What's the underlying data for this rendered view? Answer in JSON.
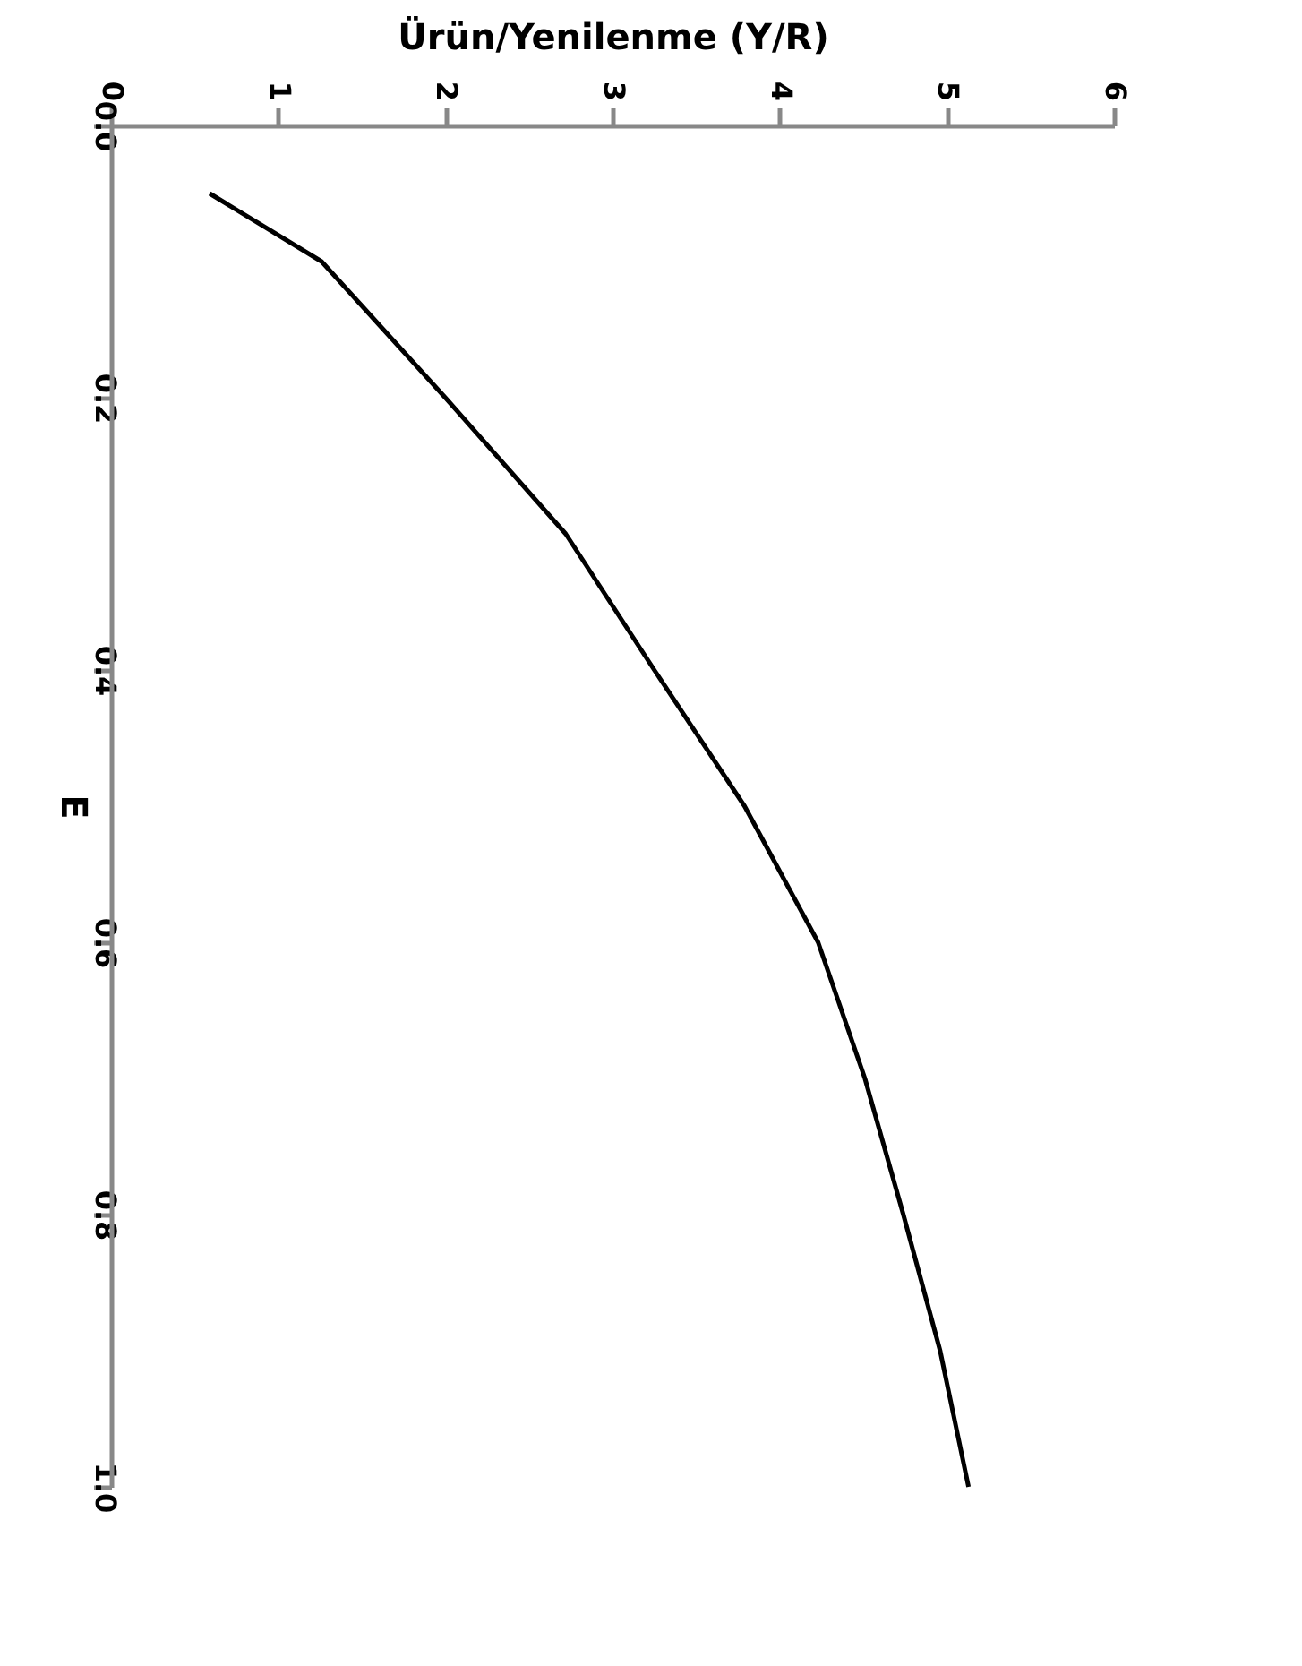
{
  "chart_data": {
    "type": "line",
    "xlabel": "Ürün/Yenilenme (Y/R)",
    "ylabel": "E",
    "xlim": [
      0,
      6
    ],
    "xticks": [
      0,
      1,
      2,
      3,
      4,
      5,
      6
    ],
    "ylim": [
      1.0,
      0.0
    ],
    "yticks": [
      {
        "value": 0,
        "label": "0.0"
      },
      {
        "value": 0.2,
        "label": "0.2"
      },
      {
        "value": 0.4,
        "label": "0.4"
      },
      {
        "value": 0.6,
        "label": "0.6"
      },
      {
        "value": 0.8,
        "label": "0.8"
      },
      {
        "value": 1,
        "label": "1.0"
      }
    ],
    "series": [
      {
        "color": "#000000",
        "x": [
          0.59,
          1.26,
          2.0,
          2.72,
          3.25,
          3.79,
          4.23,
          4.51,
          4.74,
          4.96,
          5.13
        ],
        "values": [
          0.05,
          0.1,
          0.2,
          0.3,
          0.4,
          0.5,
          0.6,
          0.7,
          0.8,
          0.9,
          1.0
        ]
      }
    ],
    "grid": false,
    "marker": "none",
    "line_style": "solid"
  }
}
